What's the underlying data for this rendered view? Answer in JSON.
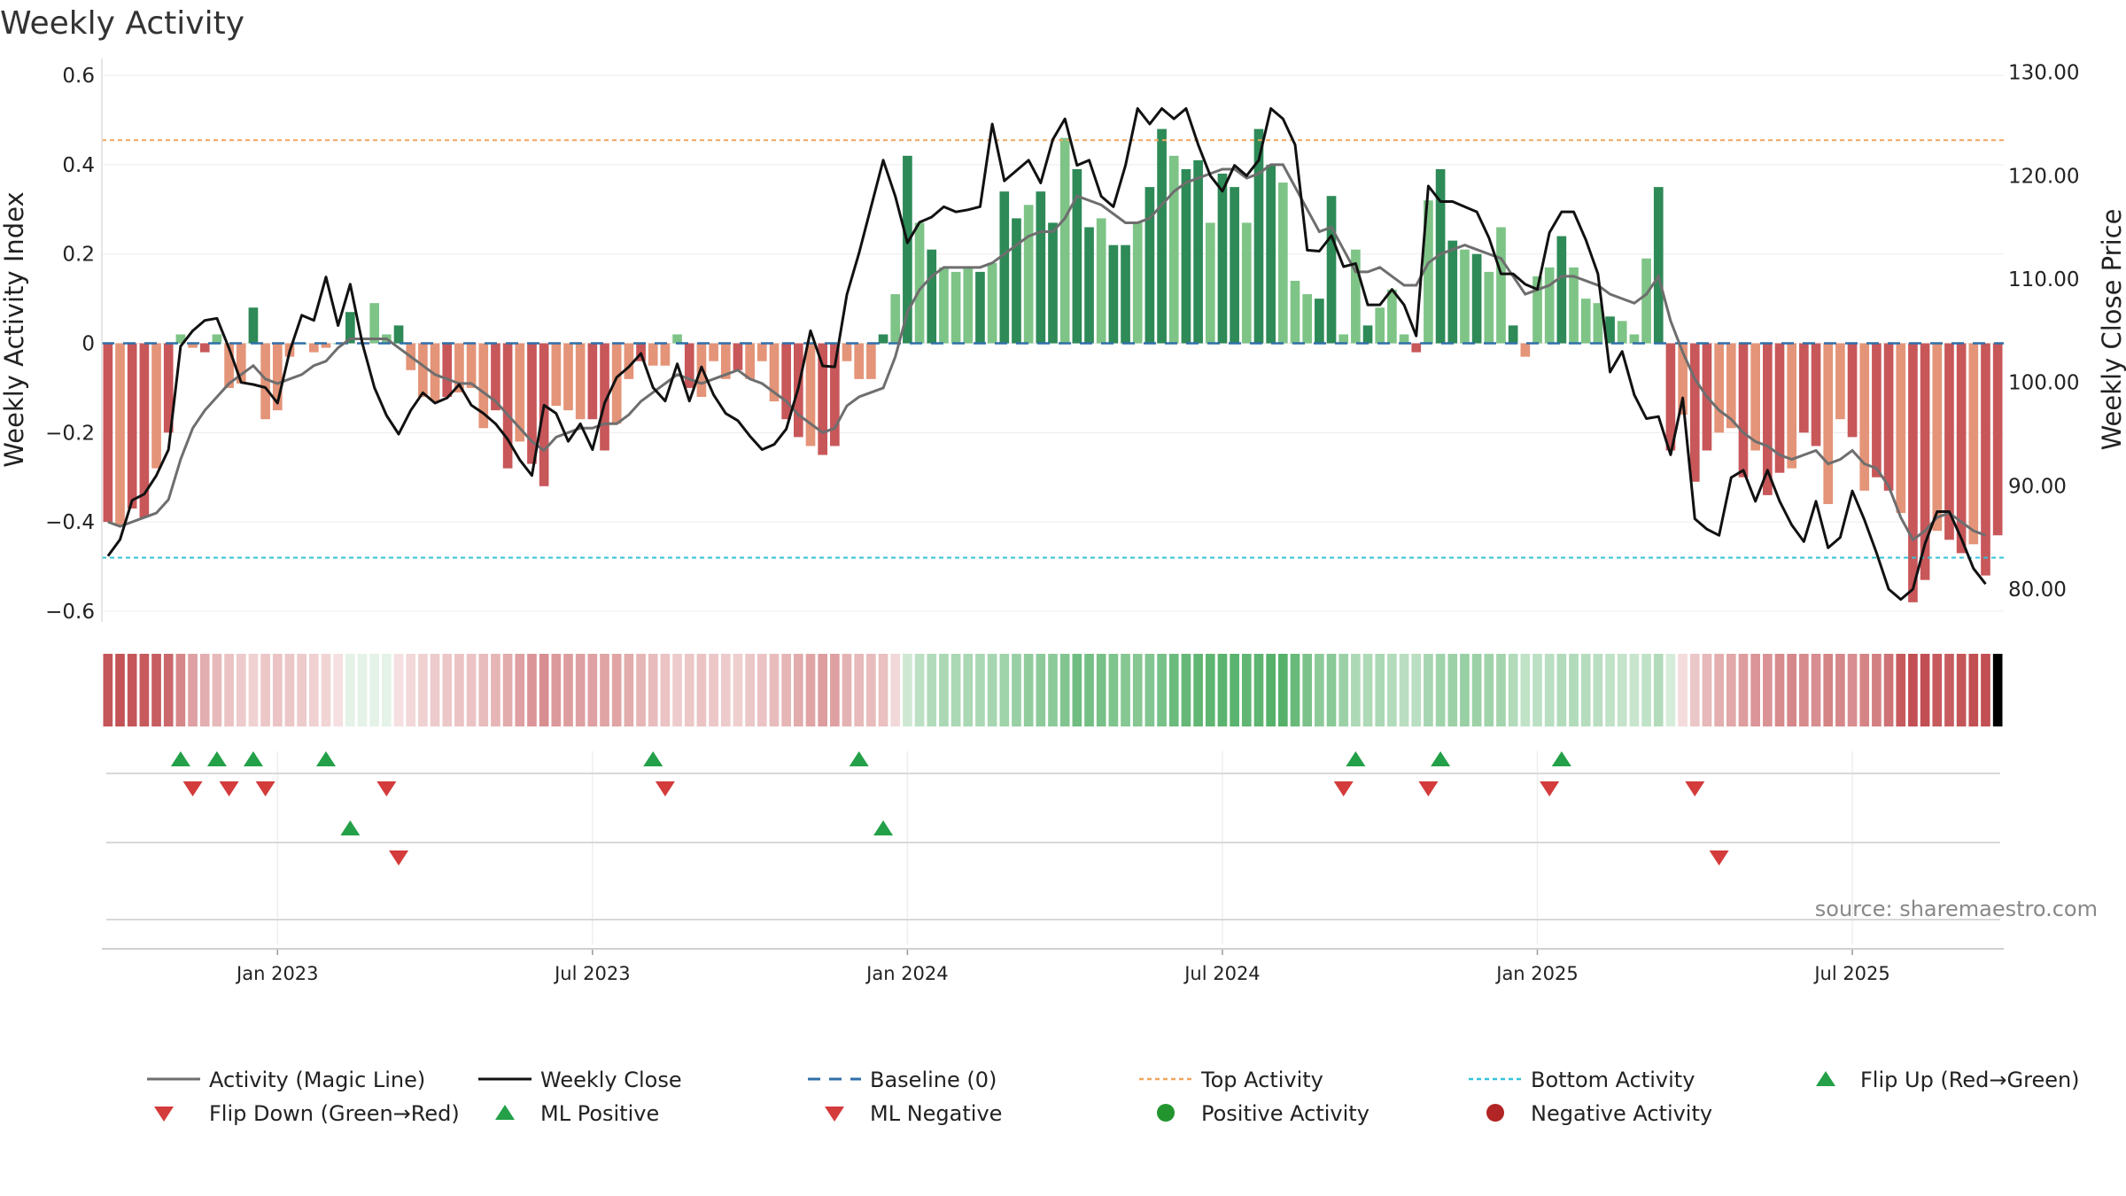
{
  "colors": {
    "green_dark": "#2e8a57",
    "green_light": "#7ec487",
    "red_dark": "#c8575a",
    "red_light": "#e49478",
    "magic_line": "#6e6e6e",
    "close_line": "#111111",
    "baseline": "#2f6fa8",
    "top_line": "#f0a560",
    "bottom_line": "#33c3d8",
    "flip_up": "#23a048",
    "flip_down": "#d43b3b"
  },
  "chart_data": {
    "type": "bar",
    "title": "Weekly Activity",
    "ylabel": "Weekly Activity Index",
    "y2label": "Weekly Close Price",
    "ylim": [
      -0.62,
      0.63
    ],
    "y2lim": [
      77.0,
      131.0
    ],
    "yticks": [
      "0.6",
      "0.4",
      "0.2",
      "0",
      "−0.2",
      "−0.4",
      "−0.6"
    ],
    "y2ticks": [
      "130.00",
      "120.00",
      "110.00",
      "100.00",
      "90.00",
      "80.00"
    ],
    "xticks": [
      "Jan 2023",
      "Jul 2023",
      "Jan 2024",
      "Jul 2024",
      "Jan 2025",
      "Jul 2025"
    ],
    "xtick_week_index": [
      14,
      40,
      66,
      92,
      118,
      144
    ],
    "weeks": 157,
    "top_activity": 0.455,
    "bottom_activity": -0.48,
    "baseline": 0,
    "activity": [
      -0.4,
      -0.41,
      -0.37,
      -0.39,
      -0.28,
      -0.2,
      0.02,
      -0.01,
      -0.02,
      0.02,
      -0.1,
      -0.09,
      0.08,
      -0.17,
      -0.15,
      -0.03,
      0.0,
      -0.02,
      -0.01,
      0.0,
      0.07,
      0.0,
      0.09,
      0.02,
      0.04,
      -0.06,
      -0.12,
      -0.13,
      -0.12,
      -0.11,
      -0.1,
      -0.19,
      -0.15,
      -0.28,
      -0.22,
      -0.27,
      -0.32,
      -0.14,
      -0.15,
      -0.17,
      -0.17,
      -0.24,
      -0.18,
      -0.08,
      -0.04,
      -0.05,
      -0.05,
      0.02,
      -0.1,
      -0.12,
      -0.04,
      -0.08,
      -0.06,
      -0.08,
      -0.04,
      -0.13,
      -0.17,
      -0.21,
      -0.23,
      -0.25,
      -0.23,
      -0.04,
      -0.08,
      -0.08,
      0.02,
      0.11,
      0.42,
      0.27,
      0.21,
      0.17,
      0.16,
      0.17,
      0.16,
      0.18,
      0.34,
      0.28,
      0.31,
      0.34,
      0.27,
      0.46,
      0.39,
      0.26,
      0.28,
      0.22,
      0.22,
      0.27,
      0.35,
      0.48,
      0.42,
      0.39,
      0.41,
      0.27,
      0.38,
      0.35,
      0.27,
      0.48,
      0.4,
      0.36,
      0.14,
      0.11,
      0.1,
      0.33,
      0.02,
      0.21,
      0.04,
      0.08,
      0.12,
      0.02,
      -0.02,
      0.32,
      0.39,
      0.23,
      0.21,
      0.2,
      0.16,
      0.26,
      0.04,
      -0.03,
      0.15,
      0.17,
      0.24,
      0.17,
      0.1,
      0.09,
      0.06,
      0.05,
      0.02,
      0.19,
      0.35,
      -0.24,
      -0.16,
      -0.31,
      -0.24,
      -0.2,
      -0.19,
      -0.3,
      -0.24,
      -0.34,
      -0.29,
      -0.28,
      -0.2,
      -0.23,
      -0.36,
      -0.17,
      -0.21,
      -0.33,
      -0.3,
      -0.33,
      -0.38,
      -0.58,
      -0.53,
      -0.42,
      -0.44,
      -0.47,
      -0.45,
      -0.52,
      -0.43
    ],
    "series": [
      {
        "name": "Activity (Magic Line)",
        "values": [
          -0.4,
          -0.41,
          -0.4,
          -0.39,
          -0.38,
          -0.35,
          -0.26,
          -0.19,
          -0.15,
          -0.12,
          -0.09,
          -0.07,
          -0.05,
          -0.08,
          -0.09,
          -0.08,
          -0.07,
          -0.05,
          -0.04,
          -0.01,
          0.01,
          0.01,
          0.01,
          0.01,
          -0.01,
          -0.03,
          -0.05,
          -0.07,
          -0.08,
          -0.09,
          -0.09,
          -0.11,
          -0.13,
          -0.16,
          -0.19,
          -0.22,
          -0.24,
          -0.21,
          -0.2,
          -0.19,
          -0.19,
          -0.18,
          -0.18,
          -0.16,
          -0.13,
          -0.11,
          -0.09,
          -0.07,
          -0.08,
          -0.09,
          -0.08,
          -0.07,
          -0.06,
          -0.08,
          -0.09,
          -0.11,
          -0.13,
          -0.16,
          -0.18,
          -0.2,
          -0.19,
          -0.14,
          -0.12,
          -0.11,
          -0.1,
          -0.03,
          0.07,
          0.12,
          0.15,
          0.17,
          0.17,
          0.17,
          0.17,
          0.18,
          0.2,
          0.22,
          0.24,
          0.25,
          0.25,
          0.28,
          0.33,
          0.32,
          0.31,
          0.29,
          0.27,
          0.27,
          0.28,
          0.31,
          0.34,
          0.36,
          0.37,
          0.38,
          0.39,
          0.39,
          0.37,
          0.38,
          0.4,
          0.4,
          0.35,
          0.3,
          0.25,
          0.26,
          0.21,
          0.16,
          0.16,
          0.17,
          0.15,
          0.13,
          0.13,
          0.18,
          0.2,
          0.21,
          0.22,
          0.21,
          0.2,
          0.19,
          0.15,
          0.11,
          0.12,
          0.13,
          0.15,
          0.15,
          0.14,
          0.13,
          0.11,
          0.1,
          0.09,
          0.11,
          0.15,
          0.05,
          -0.02,
          -0.08,
          -0.12,
          -0.15,
          -0.17,
          -0.2,
          -0.22,
          -0.23,
          -0.25,
          -0.26,
          -0.25,
          -0.24,
          -0.27,
          -0.26,
          -0.24,
          -0.27,
          -0.28,
          -0.32,
          -0.39,
          -0.44,
          -0.42,
          -0.39,
          -0.38,
          -0.4,
          -0.42,
          -0.43
        ]
      },
      {
        "name": "Weekly Close",
        "values": [
          83.2,
          84.8,
          88.6,
          89.2,
          91.0,
          93.5,
          103.5,
          105.0,
          106.0,
          106.2,
          103.3,
          100.0,
          99.8,
          99.5,
          98.0,
          103.0,
          106.5,
          106.0,
          110.2,
          105.5,
          109.5,
          103.8,
          99.5,
          96.8,
          95.0,
          97.3,
          99.0,
          98.0,
          98.5,
          99.8,
          97.8,
          97.0,
          96.0,
          94.5,
          92.5,
          91.0,
          97.8,
          97.0,
          94.3,
          96.0,
          93.5,
          98.0,
          100.5,
          101.5,
          102.8,
          99.5,
          98.2,
          101.8,
          98.2,
          101.5,
          98.8,
          97.0,
          96.3,
          94.8,
          93.5,
          94.0,
          95.5,
          99.5,
          105.0,
          101.6,
          101.5,
          108.5,
          112.5,
          117.0,
          121.5,
          118.0,
          113.5,
          115.5,
          116.0,
          117.0,
          116.5,
          116.7,
          117.0,
          125.0,
          119.5,
          120.5,
          121.5,
          119.3,
          123.5,
          125.5,
          121.0,
          121.5,
          118.0,
          117.0,
          121.0,
          126.5,
          125.0,
          126.5,
          125.5,
          126.5,
          123.0,
          120.0,
          118.5,
          121.0,
          120.0,
          121.5,
          126.5,
          125.5,
          123.0,
          112.8,
          112.7,
          114.2,
          111.2,
          111.5,
          107.5,
          107.5,
          109.0,
          107.5,
          104.5,
          119.0,
          117.5,
          117.5,
          117.0,
          116.5,
          114.0,
          110.5,
          110.5,
          109.5,
          109.0,
          114.5,
          116.5,
          116.5,
          113.8,
          110.5,
          101.0,
          103.0,
          98.8,
          96.5,
          96.7,
          93.0,
          98.5,
          86.8,
          85.8,
          85.2,
          90.8,
          91.5,
          88.5,
          91.5,
          88.5,
          86.2,
          84.6,
          88.5,
          84.0,
          85.0,
          89.5,
          86.7,
          83.5,
          80.0,
          79.0,
          80.0,
          84.4,
          87.5,
          87.5,
          84.9,
          82.0,
          80.5
        ]
      }
    ],
    "flip_up_weeks": [
      6,
      9,
      12,
      18,
      45,
      62,
      103,
      110,
      120
    ],
    "flip_down_weeks": [
      7,
      10,
      13,
      23,
      46,
      102,
      109,
      119,
      131
    ],
    "ml_positive_weeks": [
      20,
      64
    ],
    "ml_negative_weeks": [
      24,
      133
    ]
  },
  "legend": {
    "magic_line": "Activity (Magic Line)",
    "weekly_close": "Weekly Close",
    "baseline": "Baseline (0)",
    "top_activity": "Top Activity",
    "bottom_activity": "Bottom Activity",
    "flip_up": "Flip Up (Red→Green)",
    "flip_down": "Flip Down (Green→Red)",
    "ml_positive": "ML Positive",
    "ml_negative": "ML Negative",
    "positive_activity": "Positive Activity",
    "negative_activity": "Negative Activity"
  },
  "source": "source: sharemaestro.com"
}
